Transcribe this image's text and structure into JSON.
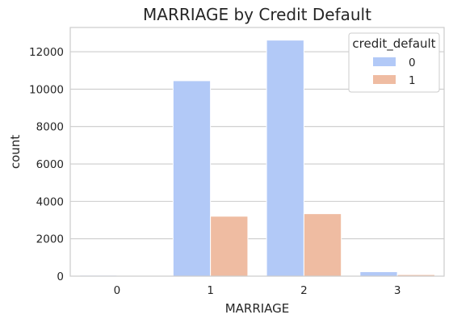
{
  "chart_data": {
    "type": "bar",
    "title": "MARRIAGE by Credit Default",
    "xlabel": "MARRIAGE",
    "ylabel": "count",
    "categories": [
      "0",
      "1",
      "2",
      "3"
    ],
    "series": [
      {
        "name": "0",
        "values": [
          49,
          10453,
          12623,
          239
        ],
        "color": "#b2c9f7"
      },
      {
        "name": "1",
        "values": [
          5,
          3206,
          3341,
          84
        ],
        "color": "#efbca2"
      }
    ],
    "ylim": [
      0,
      13300
    ],
    "yticks": [
      0,
      2000,
      4000,
      6000,
      8000,
      10000,
      12000
    ],
    "grid": true,
    "legend": {
      "title": "credit_default",
      "placement": "top-right"
    }
  }
}
